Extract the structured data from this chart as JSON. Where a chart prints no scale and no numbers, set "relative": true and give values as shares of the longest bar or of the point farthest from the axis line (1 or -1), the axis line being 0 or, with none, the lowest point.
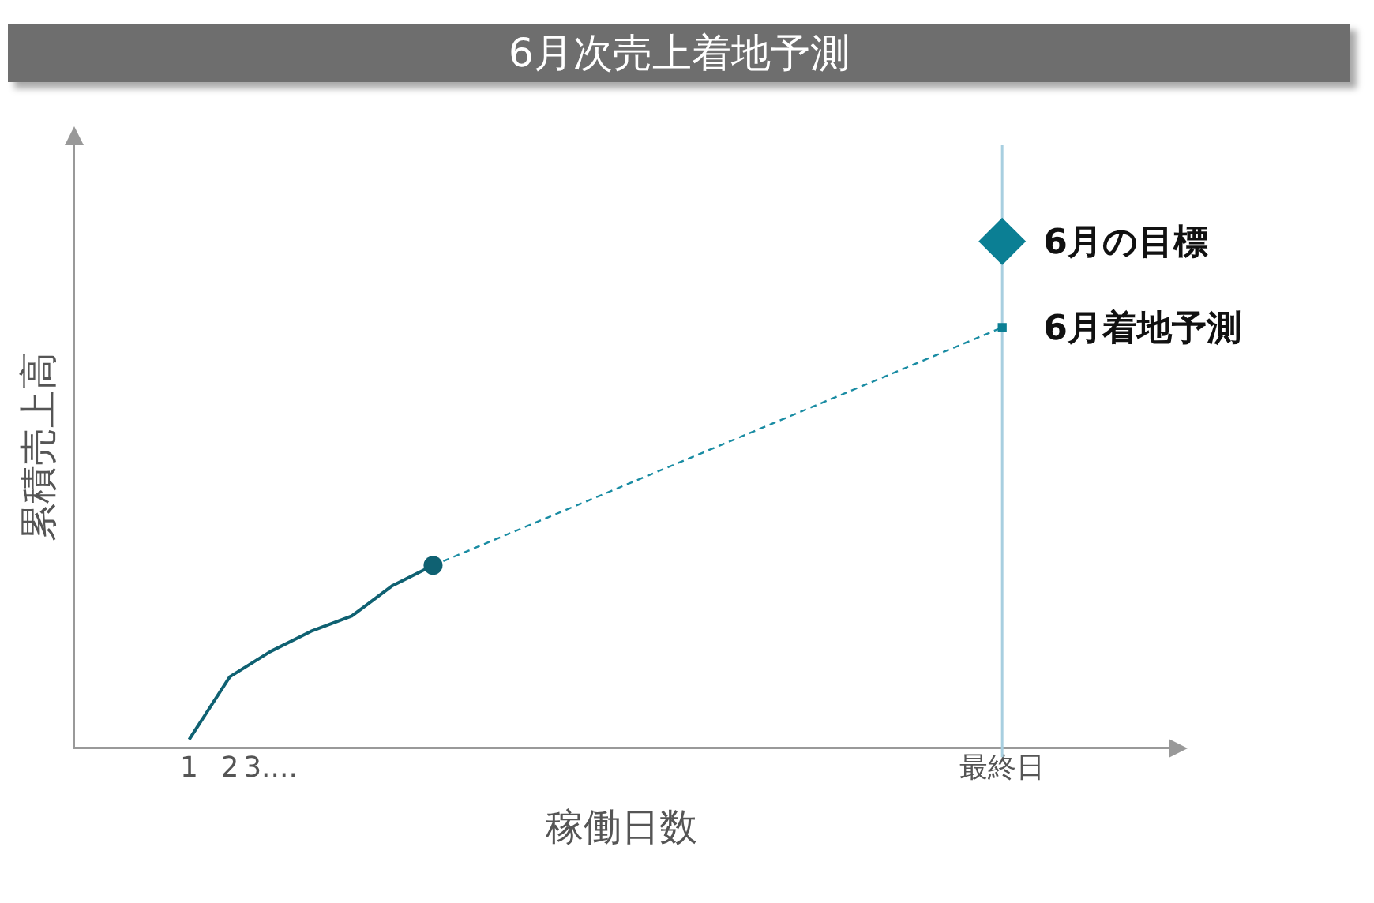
{
  "chart_data": {
    "type": "line",
    "title": "6月次売上着地予測",
    "xlabel": "稼働日数",
    "ylabel": "累積売上高",
    "relative": true,
    "grid": false,
    "legend": false,
    "tick_labels": "x",
    "categories": [
      "1",
      "2",
      "3....",
      null,
      null,
      null,
      null,
      null,
      null,
      null,
      null,
      null,
      null,
      null,
      null,
      null,
      null,
      null,
      null,
      null,
      "最終日"
    ],
    "series": [
      {
        "type": "line",
        "color": "#0f6172",
        "marker": "none",
        "line_style": "solid",
        "values": [
          0.016,
          0.14,
          0.19,
          0.23,
          0.26,
          0.32,
          0.36,
          null,
          null,
          null,
          null,
          null,
          null,
          null,
          null,
          null,
          null,
          null,
          null,
          null,
          null
        ]
      },
      {
        "type": "line",
        "color": "#1a8ca3",
        "marker": "none",
        "line_style": "dashed",
        "values": [
          null,
          null,
          null,
          null,
          null,
          null,
          0.36,
          null,
          null,
          null,
          null,
          null,
          null,
          null,
          null,
          null,
          null,
          null,
          null,
          null,
          0.83
        ]
      },
      {
        "type": "scatter",
        "color": "#0f6172",
        "marker": "circle",
        "values": [
          null,
          null,
          null,
          null,
          null,
          null,
          0.36,
          null,
          null,
          null,
          null,
          null,
          null,
          null,
          null,
          null,
          null,
          null,
          null,
          null,
          null
        ]
      },
      {
        "type": "scatter",
        "name": "6月着地予測",
        "color": "#0b7f94",
        "marker": "square",
        "values": [
          null,
          null,
          null,
          null,
          null,
          null,
          null,
          null,
          null,
          null,
          null,
          null,
          null,
          null,
          null,
          null,
          null,
          null,
          null,
          null,
          0.83
        ]
      },
      {
        "type": "scatter",
        "name": "6月の目標",
        "color": "#0b7f94",
        "marker": "diamond",
        "values": [
          null,
          null,
          null,
          null,
          null,
          null,
          null,
          null,
          null,
          null,
          null,
          null,
          null,
          null,
          null,
          null,
          null,
          null,
          null,
          null,
          1
        ]
      }
    ],
    "ref_lines": [
      {
        "axis": "x",
        "value": "最終日",
        "color": "#a8cfe0"
      }
    ]
  }
}
